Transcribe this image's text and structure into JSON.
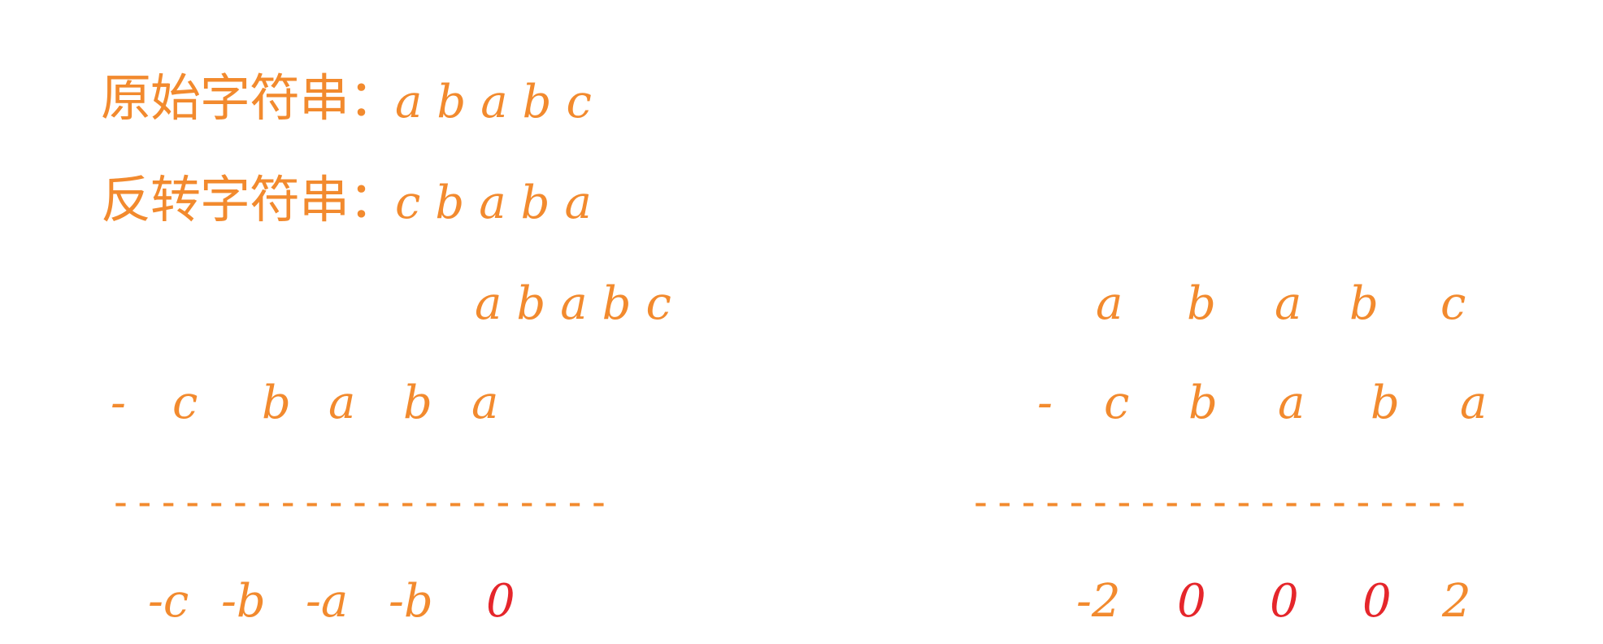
{
  "original": {
    "label": "原始字符串：",
    "chars": [
      "a",
      "b",
      "a",
      "b",
      "c"
    ]
  },
  "reversed": {
    "label": "反转字符串：",
    "chars": [
      "c",
      "b",
      "a",
      "b",
      "a"
    ]
  },
  "left_calc": {
    "top": [
      "a",
      "b",
      "a",
      "b",
      "c"
    ],
    "minus": "-",
    "bottom": [
      "c",
      "b",
      "a",
      "b",
      "a"
    ],
    "divider": "---------------------",
    "result": [
      "-c",
      "-b",
      "-a",
      "-b",
      "0"
    ],
    "highlight_index": 4
  },
  "right_calc": {
    "top": [
      "a",
      "b",
      "a",
      "b",
      "c"
    ],
    "minus": "-",
    "bottom": [
      "c",
      "b",
      "a",
      "b",
      "a"
    ],
    "divider": "---------------------",
    "result": [
      "-2",
      "0",
      "0",
      "0",
      "2"
    ],
    "highlight_indices": [
      1,
      2,
      3
    ]
  },
  "colors": {
    "orange": "#f28a2e",
    "red": "#e5262b"
  }
}
